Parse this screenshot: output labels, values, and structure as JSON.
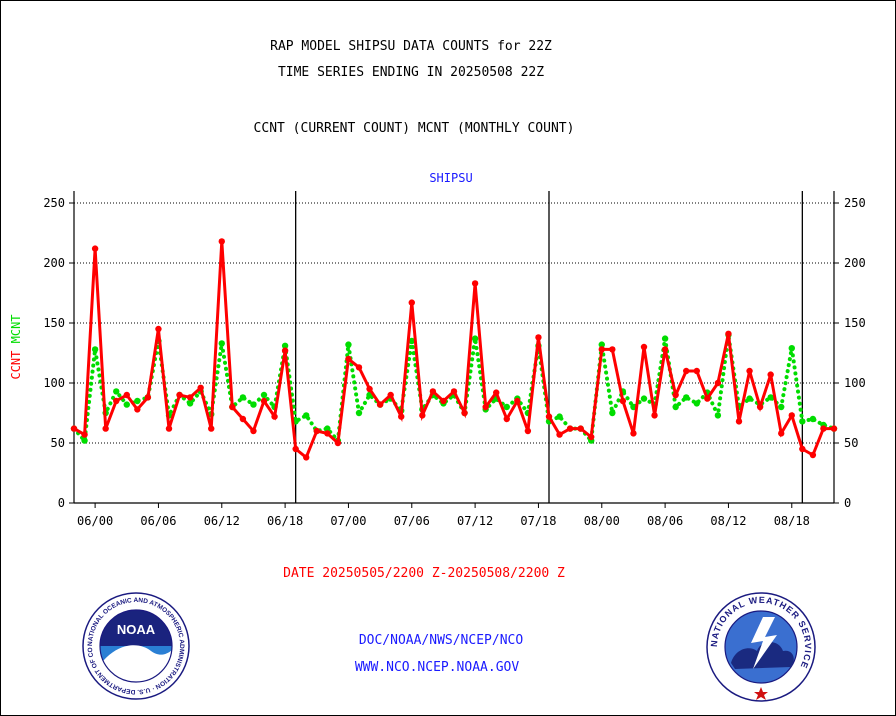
{
  "header": {
    "title_line1": "RAP MODEL SHIPSU DATA COUNTS for 22Z",
    "title_line2": "TIME SERIES ENDING IN 20250508 22Z",
    "subtitle": "CCNT (CURRENT COUNT) MCNT (MONTHLY COUNT)"
  },
  "footer": {
    "date_range": "DATE 20250505/2200 Z-20250508/2200 Z",
    "org_line": "DOC/NOAA/NWS/NCEP/NCO",
    "url_line": "WWW.NCO.NCEP.NOAA.GOV"
  },
  "logos": {
    "noaa_text": "NOAA",
    "noaa_ring_text": "NATIONAL OCEANIC AND ATMOSPHERIC ADMINISTRATION · U.S. DEPARTMENT OF COMMERCE ·",
    "nws_ring_text": "NATIONAL WEATHER SERVICE"
  },
  "colors": {
    "ccnt": "#ff0000",
    "mcnt": "#00dd00",
    "plot_title": "#1a1aff",
    "date_text": "#ff0000",
    "footer_text": "#1a1aff"
  },
  "chart_data": {
    "type": "line",
    "title": "SHIPSU",
    "ylabel_parts": [
      {
        "text": "CCNT",
        "color": "#ff0000"
      },
      {
        "text": "MCNT",
        "color": "#00dd00"
      }
    ],
    "ylim": [
      0,
      260
    ],
    "y_ticks": [
      0,
      50,
      100,
      150,
      200,
      250
    ],
    "x_tick_labels": [
      "06/00",
      "06/06",
      "06/12",
      "06/18",
      "07/00",
      "07/06",
      "07/12",
      "07/18",
      "08/00",
      "08/06",
      "08/12",
      "08/18"
    ],
    "x_tick_index": [
      2,
      8,
      14,
      20,
      26,
      32,
      38,
      44,
      50,
      56,
      62,
      68
    ],
    "day_separators_index": [
      21,
      45,
      69
    ],
    "grid": "horizontal dotted at 50-unit steps",
    "series": [
      {
        "name": "CCNT",
        "color": "#ff0000",
        "style": "solid-dots",
        "values": [
          62,
          57,
          212,
          62,
          85,
          90,
          78,
          88,
          145,
          62,
          90,
          88,
          96,
          62,
          218,
          80,
          70,
          60,
          85,
          72,
          127,
          45,
          38,
          60,
          58,
          50,
          120,
          113,
          95,
          82,
          90,
          72,
          167,
          73,
          93,
          85,
          93,
          75,
          183,
          80,
          92,
          70,
          85,
          60,
          138,
          72,
          57,
          62,
          62,
          55,
          128,
          128,
          85,
          58,
          130,
          73,
          128,
          90,
          110,
          110,
          87,
          100,
          141,
          68,
          110,
          80,
          107,
          58,
          73,
          45,
          40,
          62,
          62
        ]
      },
      {
        "name": "MCNT",
        "color": "#00dd00",
        "style": "dotted",
        "values": [
          62,
          52,
          128,
          75,
          93,
          82,
          85,
          88,
          135,
          73,
          90,
          83,
          93,
          74,
          133,
          80,
          88,
          82,
          90,
          80,
          131,
          68,
          73,
          60,
          62,
          52,
          132,
          75,
          90,
          82,
          87,
          77,
          135,
          78,
          90,
          83,
          90,
          75,
          137,
          78,
          87,
          80,
          87,
          75,
          131,
          68,
          72,
          62,
          62,
          52,
          132,
          75,
          93,
          80,
          87,
          82,
          137,
          80,
          88,
          83,
          92,
          73,
          140,
          80,
          87,
          82,
          88,
          80,
          129,
          68,
          70,
          65,
          62
        ]
      }
    ]
  }
}
